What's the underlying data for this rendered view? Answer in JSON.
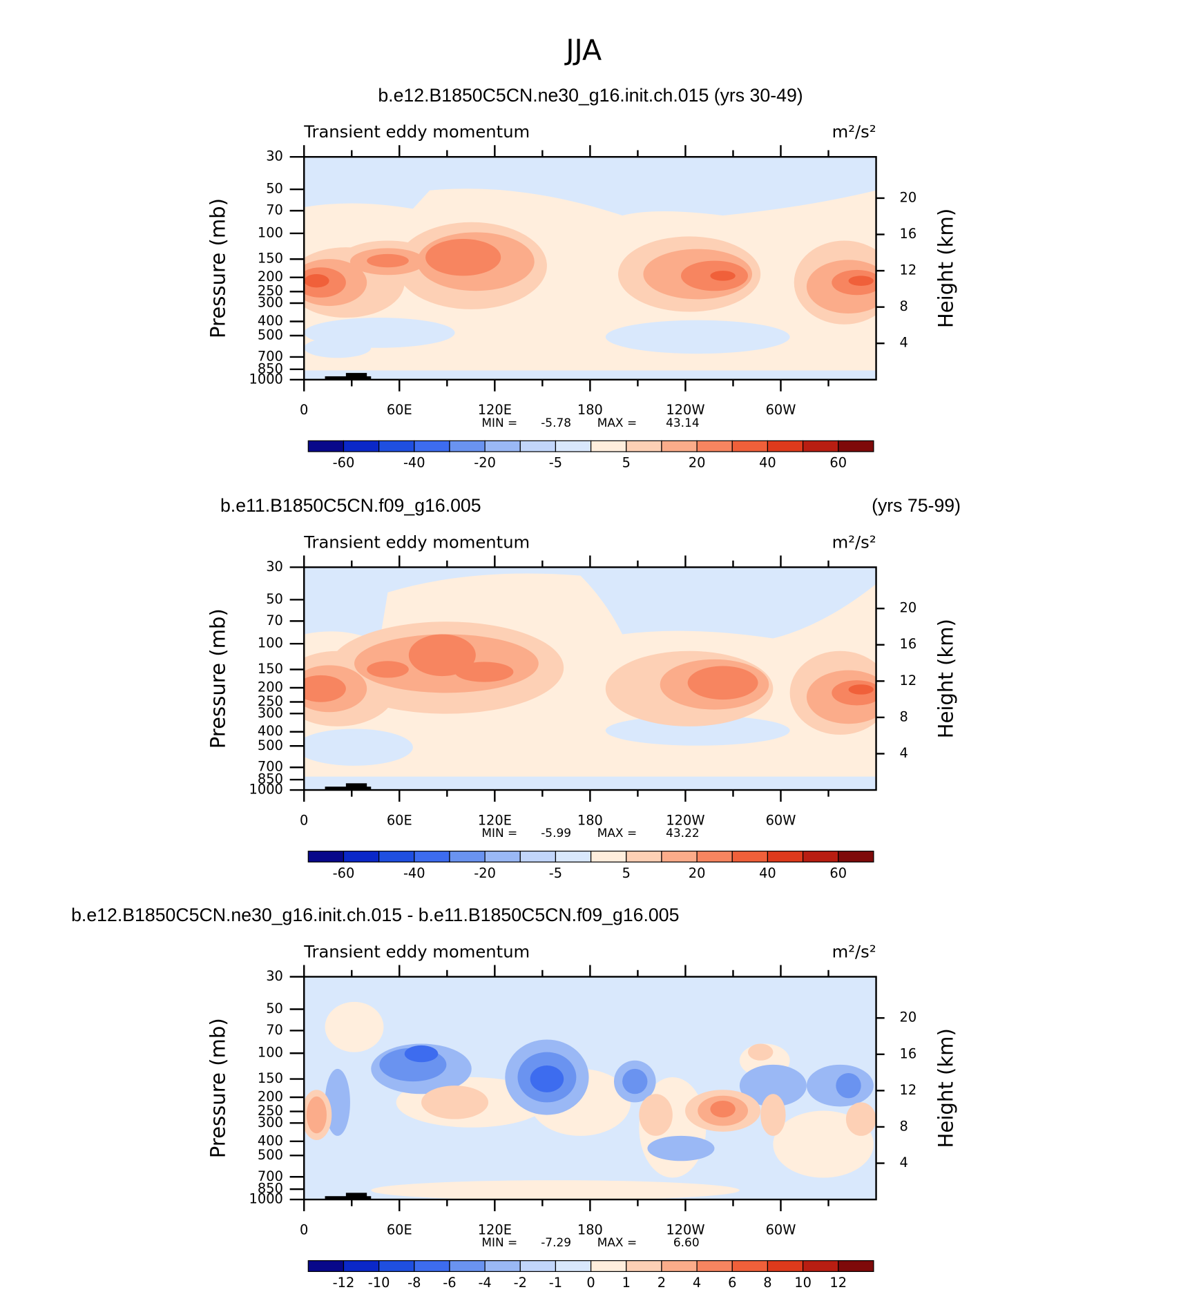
{
  "title": "JJA",
  "chart_data": [
    {
      "type": "contour",
      "title": "b.e12.B1850C5CN.ne30_g16.init.ch.015 (yrs 30-49)",
      "subtitle": "Transient eddy momentum",
      "units": "m²/s²",
      "ylabel": "Pressure (mb)",
      "y2label": "Height (km)",
      "ylog": true,
      "ylim": [
        1000,
        30
      ],
      "yticks": [
        30,
        50,
        70,
        100,
        150,
        200,
        250,
        300,
        400,
        500,
        700,
        850,
        1000
      ],
      "y2ticks": [
        4,
        8,
        12,
        16,
        20
      ],
      "xlim": [
        0,
        360
      ],
      "xticks": [
        0,
        {
          "value": 60,
          "label": "60E"
        },
        {
          "value": 120,
          "label": "120E"
        },
        180,
        {
          "value": 240,
          "label": "120W"
        },
        {
          "value": 300,
          "label": "60W"
        }
      ],
      "min_label": "MIN =",
      "min": -5.78,
      "max_label": "MAX =",
      "max": 43.14,
      "colorbar": {
        "colors": [
          "#08088a",
          "#0b28c8",
          "#1f4fe0",
          "#3d6cef",
          "#6a93f0",
          "#9ab8f5",
          "#c2d6fa",
          "#d9e8fc",
          "#ffeedd",
          "#fdd0b5",
          "#fbac8a",
          "#f78560",
          "#f0603a",
          "#de3a1c",
          "#b81e12",
          "#7e0a0a"
        ],
        "ticks": [
          -60,
          -40,
          -20,
          -5,
          5,
          20,
          40,
          60
        ]
      }
    },
    {
      "type": "contour",
      "title_left": "b.e11.B1850C5CN.f09_g16.005",
      "title_right": "(yrs 75-99)",
      "subtitle": "Transient eddy momentum",
      "units": "m²/s²",
      "ylabel": "Pressure (mb)",
      "y2label": "Height (km)",
      "ylog": true,
      "ylim": [
        1000,
        30
      ],
      "yticks": [
        30,
        50,
        70,
        100,
        150,
        200,
        250,
        300,
        400,
        500,
        700,
        850,
        1000
      ],
      "y2ticks": [
        4,
        8,
        12,
        16,
        20
      ],
      "xlim": [
        0,
        360
      ],
      "xticks": [
        0,
        {
          "value": 60,
          "label": "60E"
        },
        {
          "value": 120,
          "label": "120E"
        },
        180,
        {
          "value": 240,
          "label": "120W"
        },
        {
          "value": 300,
          "label": "60W"
        }
      ],
      "min_label": "MIN =",
      "min": -5.99,
      "max_label": "MAX =",
      "max": 43.22,
      "colorbar": {
        "colors": [
          "#08088a",
          "#0b28c8",
          "#1f4fe0",
          "#3d6cef",
          "#6a93f0",
          "#9ab8f5",
          "#c2d6fa",
          "#d9e8fc",
          "#ffeedd",
          "#fdd0b5",
          "#fbac8a",
          "#f78560",
          "#f0603a",
          "#de3a1c",
          "#b81e12",
          "#7e0a0a"
        ],
        "ticks": [
          -60,
          -40,
          -20,
          -5,
          5,
          20,
          40,
          60
        ]
      }
    },
    {
      "type": "contour",
      "title_left": "b.e12.B1850C5CN.ne30_g16.init.ch.015 - b.e11.B1850C5CN.f09_g16.005",
      "subtitle": "Transient eddy momentum",
      "units": "m²/s²",
      "ylabel": "Pressure (mb)",
      "y2label": "Height (km)",
      "ylog": true,
      "ylim": [
        1000,
        30
      ],
      "yticks": [
        30,
        50,
        70,
        100,
        150,
        200,
        250,
        300,
        400,
        500,
        700,
        850,
        1000
      ],
      "y2ticks": [
        4,
        8,
        12,
        16,
        20
      ],
      "xlim": [
        0,
        360
      ],
      "xticks": [
        0,
        {
          "value": 60,
          "label": "60E"
        },
        {
          "value": 120,
          "label": "120E"
        },
        180,
        {
          "value": 240,
          "label": "120W"
        },
        {
          "value": 300,
          "label": "60W"
        }
      ],
      "min_label": "MIN =",
      "min": -7.29,
      "max_label": "MAX =",
      "max": {
        "value": 6.6,
        "label": "6.60"
      },
      "colorbar": {
        "colors": [
          "#08088a",
          "#0b28c8",
          "#1f4fe0",
          "#3d6cef",
          "#6a93f0",
          "#9ab8f5",
          "#c2d6fa",
          "#d9e8fc",
          "#ffeedd",
          "#fdd0b5",
          "#fbac8a",
          "#f78560",
          "#f0603a",
          "#de3a1c",
          "#b81e12",
          "#7e0a0a"
        ],
        "ticks": [
          -12,
          -10,
          -8,
          -6,
          -4,
          -2,
          -1,
          0,
          1,
          2,
          4,
          6,
          8,
          10,
          12
        ]
      }
    }
  ]
}
